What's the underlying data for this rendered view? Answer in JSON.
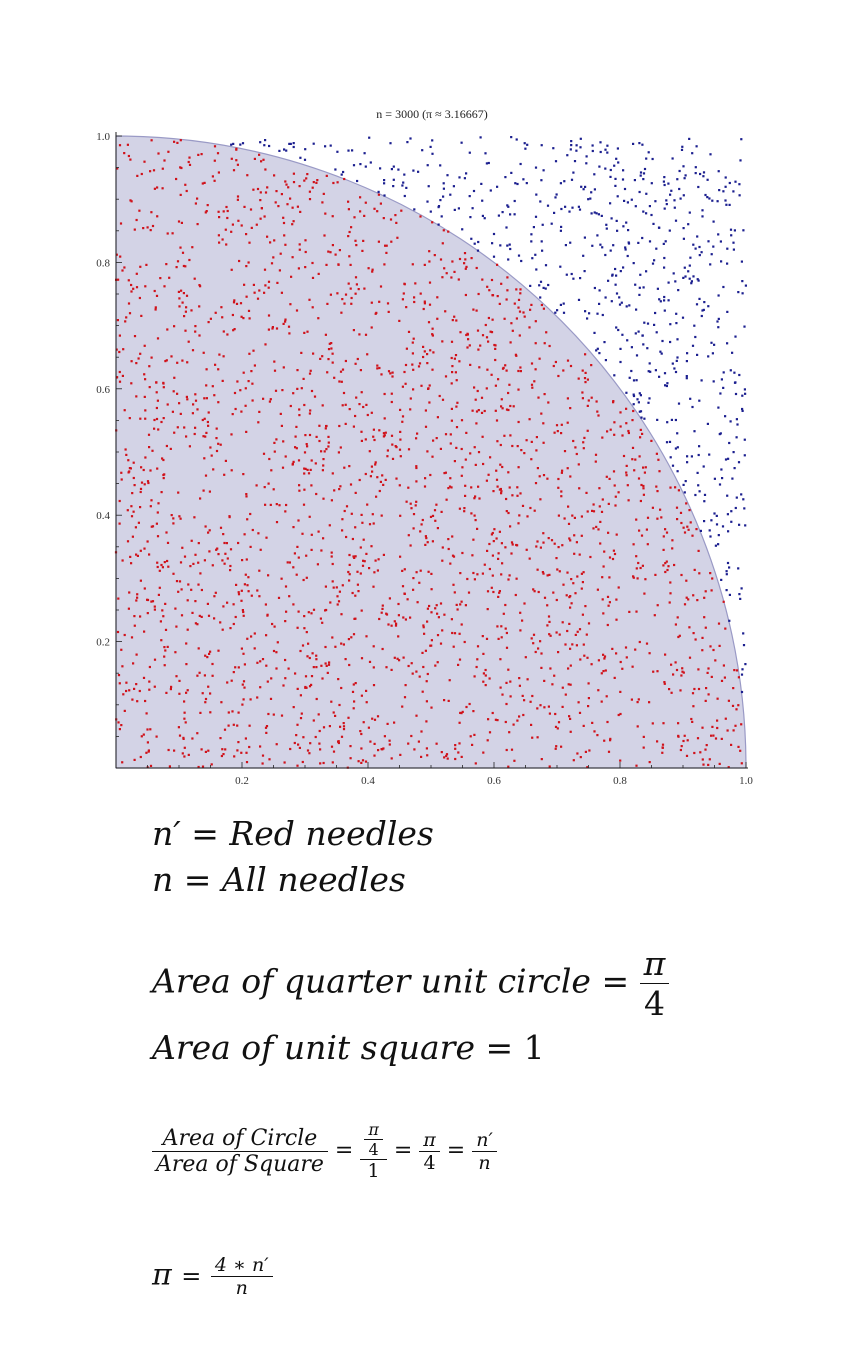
{
  "chart_data": {
    "type": "scatter",
    "title": "n = 3000 (π ≈ 3.16667)",
    "xlim": [
      0,
      1
    ],
    "ylim": [
      0,
      1
    ],
    "x_ticks": [
      "0.2",
      "0.4",
      "0.6",
      "0.8",
      "1.0"
    ],
    "y_ticks": [
      "0.2",
      "0.4",
      "0.6",
      "0.8",
      "1.0"
    ],
    "grid": false,
    "n_points": 3000,
    "pi_estimate": 3.16667,
    "region": "quarter unit circle",
    "colors": {
      "inside": "#d0121b",
      "outside": "#1b1f8f",
      "region_fill": "#d3d3e6",
      "region_edge": "#9a9ac6"
    }
  },
  "formulas": {
    "def_red": {
      "lhs": "n′",
      "eq": "=",
      "rhs": "Red needles"
    },
    "def_all": {
      "lhs": "n",
      "eq": "=",
      "rhs": "All needles"
    },
    "area_circle": {
      "label": "Area of quarter unit circle",
      "eq": "=",
      "num": "π",
      "den": "4"
    },
    "area_square": {
      "label": "Area of unit square",
      "eq": "=",
      "value": "1"
    },
    "ratio": {
      "num_label": "Area of Circle",
      "den_label": "Area of Square",
      "eq1": "=",
      "f1_num_num": "π",
      "f1_num_den": "4",
      "f1_den": "1",
      "eq2": "=",
      "f2_num": "π",
      "f2_den": "4",
      "eq3": "=",
      "f3_num": "n′",
      "f3_den": "n"
    },
    "pi": {
      "lhs": "π",
      "eq": "=",
      "num": "4 ∗ n′",
      "den": "n"
    }
  }
}
